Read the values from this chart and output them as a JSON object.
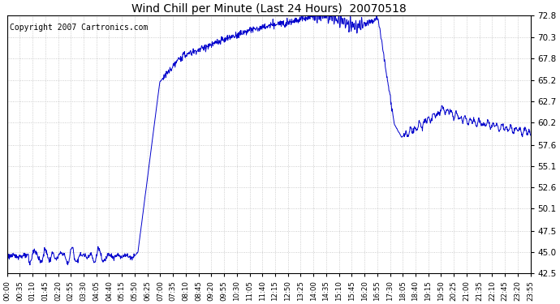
{
  "title": "Wind Chill per Minute (Last 24 Hours)  20070518",
  "copyright_text": "Copyright 2007 Cartronics.com",
  "line_color": "#0000CC",
  "background_color": "#ffffff",
  "grid_color": "#c0c0c0",
  "y_ticks": [
    42.5,
    45.0,
    47.5,
    50.1,
    52.6,
    55.1,
    57.6,
    60.2,
    62.7,
    65.2,
    67.8,
    70.3,
    72.8
  ],
  "ylim": [
    42.5,
    72.8
  ],
  "x_tick_labels": [
    "00:00",
    "00:35",
    "01:10",
    "01:45",
    "02:20",
    "02:55",
    "03:30",
    "04:05",
    "04:40",
    "05:15",
    "05:50",
    "06:25",
    "07:00",
    "07:35",
    "08:10",
    "08:45",
    "09:20",
    "09:55",
    "10:30",
    "11:05",
    "11:40",
    "12:15",
    "12:50",
    "13:25",
    "14:00",
    "14:35",
    "15:10",
    "15:45",
    "16:20",
    "16:55",
    "17:30",
    "18:05",
    "18:40",
    "19:15",
    "19:50",
    "20:25",
    "21:00",
    "21:35",
    "22:10",
    "22:45",
    "23:20",
    "23:55"
  ],
  "n_xticks": 42,
  "total_minutes": 1440
}
